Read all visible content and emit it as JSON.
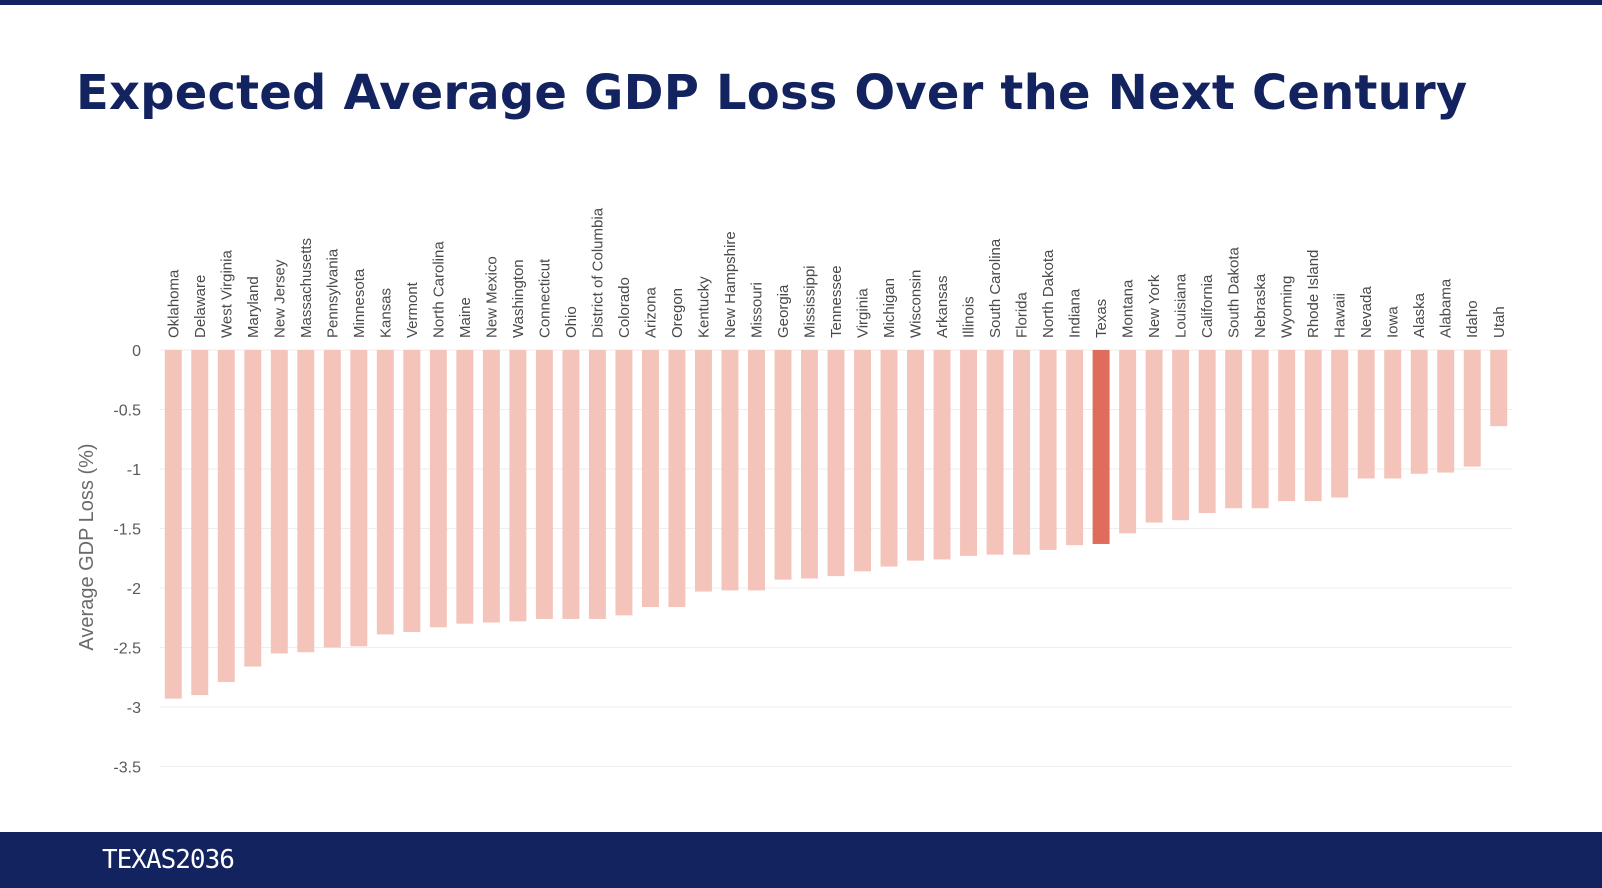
{
  "slide": {
    "title": "Expected Average GDP Loss Over the Next Century",
    "logo_text": "TEXAS2036"
  },
  "colors": {
    "brand_navy": "#13235f",
    "bar_default": "#f4c4bb",
    "bar_highlight": "#e06c5c",
    "gridline": "#eeeeee"
  },
  "chart_data": {
    "type": "bar",
    "title": "",
    "xlabel": "",
    "ylabel": "Average GDP Loss (%)",
    "ylim": [
      -3.5,
      0
    ],
    "yticks": [
      0,
      -0.5,
      -1,
      -1.5,
      -2,
      -2.5,
      -3,
      -3.5
    ],
    "ytick_labels": [
      "0",
      "-0.5",
      "-1",
      "-1.5",
      "-2",
      "-2.5",
      "-3",
      "-3.5"
    ],
    "grid": true,
    "highlight": "Texas",
    "categories": [
      "Oklahoma",
      "Delaware",
      "West Virginia",
      "Maryland",
      "New Jersey",
      "Massachusetts",
      "Pennsylvania",
      "Minnesota",
      "Kansas",
      "Vermont",
      "North Carolina",
      "Maine",
      "New Mexico",
      "Washington",
      "Connecticut",
      "Ohio",
      "District of Columbia",
      "Colorado",
      "Arizona",
      "Oregon",
      "Kentucky",
      "New Hampshire",
      "Missouri",
      "Georgia",
      "Mississippi",
      "Tennessee",
      "Virginia",
      "Michigan",
      "Wisconsin",
      "Arkansas",
      "Illinois",
      "South Carolina",
      "Florida",
      "North Dakota",
      "Indiana",
      "Texas",
      "Montana",
      "New York",
      "Louisiana",
      "California",
      "South Dakota",
      "Nebraska",
      "Wyoming",
      "Rhode Island",
      "Hawaii",
      "Nevada",
      "Iowa",
      "Alaska",
      "Alabama",
      "Idaho",
      "Utah"
    ],
    "values": [
      -2.93,
      -2.9,
      -2.79,
      -2.66,
      -2.55,
      -2.54,
      -2.5,
      -2.49,
      -2.39,
      -2.37,
      -2.33,
      -2.3,
      -2.29,
      -2.28,
      -2.26,
      -2.26,
      -2.26,
      -2.23,
      -2.16,
      -2.16,
      -2.03,
      -2.02,
      -2.02,
      -1.93,
      -1.92,
      -1.9,
      -1.86,
      -1.82,
      -1.77,
      -1.76,
      -1.73,
      -1.72,
      -1.72,
      -1.68,
      -1.64,
      -1.63,
      -1.54,
      -1.45,
      -1.43,
      -1.37,
      -1.33,
      -1.33,
      -1.27,
      -1.27,
      -1.24,
      -1.08,
      -1.08,
      -1.04,
      -1.03,
      -0.98,
      -0.64
    ]
  }
}
